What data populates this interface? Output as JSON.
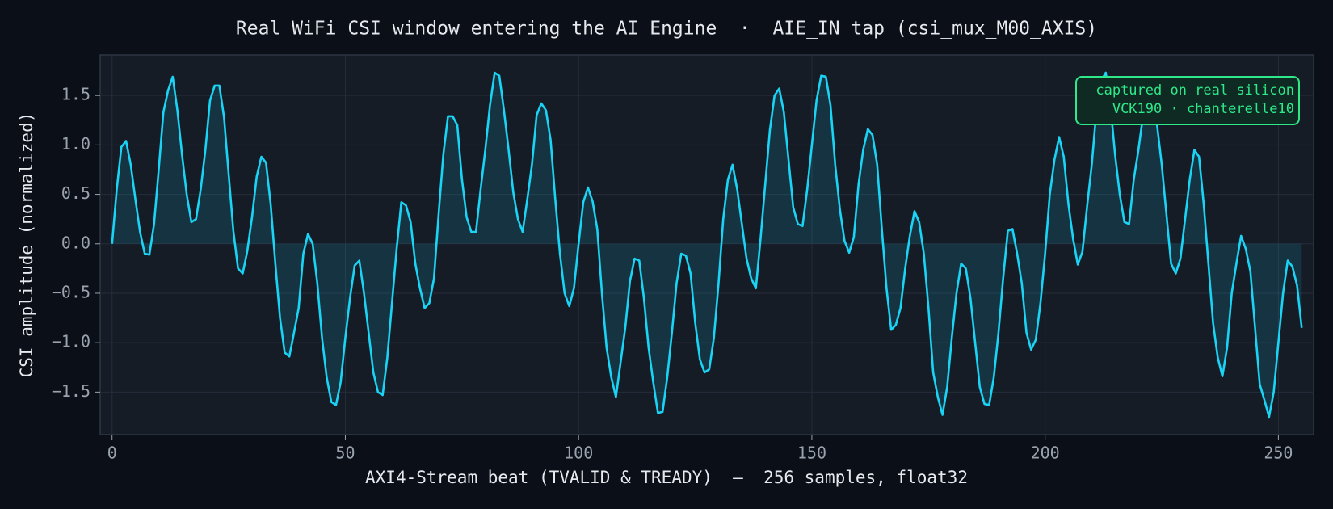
{
  "chart_data": {
    "type": "line",
    "title": "Real WiFi CSI window entering the AI Engine  ·  AIE_IN tap (csi_mux_M00_AXIS)",
    "x_label": "AXI4-Stream beat (TVALID & TREADY)  —  256 samples, float32",
    "y_label": "CSI amplitude (normalized)",
    "annotation": [
      "captured on real silicon",
      "VCK190 · chanterelle10"
    ],
    "annotation_color": "#2ee88a",
    "grid": true,
    "xlim": [
      -2.55,
      257.55
    ],
    "ylim": [
      -1.93,
      1.91
    ],
    "xticks": [
      0,
      50,
      100,
      150,
      200,
      250
    ],
    "yticks": [
      {
        "value": -1.5,
        "label": "−1.5"
      },
      {
        "value": -1,
        "label": "−1.0"
      },
      {
        "value": -0.5,
        "label": "−0.5"
      },
      {
        "value": 0,
        "label": "0.0"
      },
      0.5,
      {
        "value": 1,
        "label": "1.0"
      },
      1.5
    ],
    "series": [
      {
        "color": "#1ad3f5",
        "values": [
          0,
          0.55,
          0.98,
          1.04,
          0.8,
          0.45,
          0.12,
          -0.1,
          -0.11,
          0.2,
          0.75,
          1.33,
          1.55,
          1.69,
          1.35,
          0.9,
          0.5,
          0.22,
          0.25,
          0.55,
          0.95,
          1.45,
          1.6,
          1.6,
          1.28,
          0.7,
          0.13,
          -0.25,
          -0.3,
          -0.07,
          0.27,
          0.68,
          0.88,
          0.82,
          0.4,
          -0.2,
          -0.75,
          -1.1,
          -1.14,
          -0.9,
          -0.65,
          -0.1,
          0.1,
          0.0,
          -0.4,
          -0.95,
          -1.35,
          -1.6,
          -1.63,
          -1.4,
          -0.95,
          -0.55,
          -0.22,
          -0.17,
          -0.5,
          -0.9,
          -1.3,
          -1.5,
          -1.53,
          -1.15,
          -0.6,
          -0.05,
          0.42,
          0.39,
          0.22,
          -0.2,
          -0.45,
          -0.65,
          -0.6,
          -0.35,
          0.3,
          0.9,
          1.29,
          1.29,
          1.2,
          0.65,
          0.27,
          0.12,
          0.12,
          0.55,
          0.95,
          1.4,
          1.73,
          1.7,
          1.35,
          0.95,
          0.52,
          0.25,
          0.12,
          0.45,
          0.8,
          1.3,
          1.42,
          1.35,
          1.05,
          0.45,
          -0.1,
          -0.5,
          -0.63,
          -0.45,
          0.0,
          0.42,
          0.57,
          0.43,
          0.15,
          -0.5,
          -1.05,
          -1.35,
          -1.55,
          -1.2,
          -0.85,
          -0.38,
          -0.15,
          -0.17,
          -0.55,
          -1.05,
          -1.4,
          -1.71,
          -1.7,
          -1.35,
          -0.9,
          -0.4,
          -0.1,
          -0.12,
          -0.3,
          -0.8,
          -1.17,
          -1.3,
          -1.27,
          -0.95,
          -0.4,
          0.25,
          0.65,
          0.8,
          0.55,
          0.2,
          -0.15,
          -0.35,
          -0.45,
          0.05,
          0.6,
          1.15,
          1.5,
          1.57,
          1.33,
          0.85,
          0.37,
          0.2,
          0.18,
          0.55,
          1.0,
          1.45,
          1.7,
          1.69,
          1.4,
          0.8,
          0.35,
          0.03,
          -0.09,
          0.07,
          0.6,
          0.95,
          1.16,
          1.1,
          0.8,
          0.15,
          -0.45,
          -0.87,
          -0.82,
          -0.65,
          -0.25,
          0.08,
          0.33,
          0.22,
          -0.1,
          -0.65,
          -1.3,
          -1.55,
          -1.73,
          -1.45,
          -0.95,
          -0.5,
          -0.2,
          -0.25,
          -0.55,
          -1.0,
          -1.45,
          -1.62,
          -1.63,
          -1.35,
          -0.9,
          -0.35,
          0.13,
          0.15,
          -0.1,
          -0.4,
          -0.9,
          -1.07,
          -0.97,
          -0.6,
          -0.1,
          0.5,
          0.85,
          1.08,
          0.88,
          0.4,
          0.05,
          -0.21,
          -0.08,
          0.38,
          0.8,
          1.35,
          1.65,
          1.73,
          1.4,
          0.9,
          0.5,
          0.22,
          0.2,
          0.65,
          0.95,
          1.3,
          1.45,
          1.4,
          1.2,
          0.8,
          0.3,
          -0.2,
          -0.3,
          -0.15,
          0.25,
          0.65,
          0.95,
          0.88,
          0.4,
          -0.2,
          -0.8,
          -1.15,
          -1.34,
          -1.05,
          -0.5,
          -0.2,
          0.08,
          -0.05,
          -0.28,
          -0.85,
          -1.42,
          -1.58,
          -1.75,
          -1.5,
          -1.0,
          -0.5,
          -0.17,
          -0.23,
          -0.42,
          -0.85
        ]
      }
    ]
  }
}
